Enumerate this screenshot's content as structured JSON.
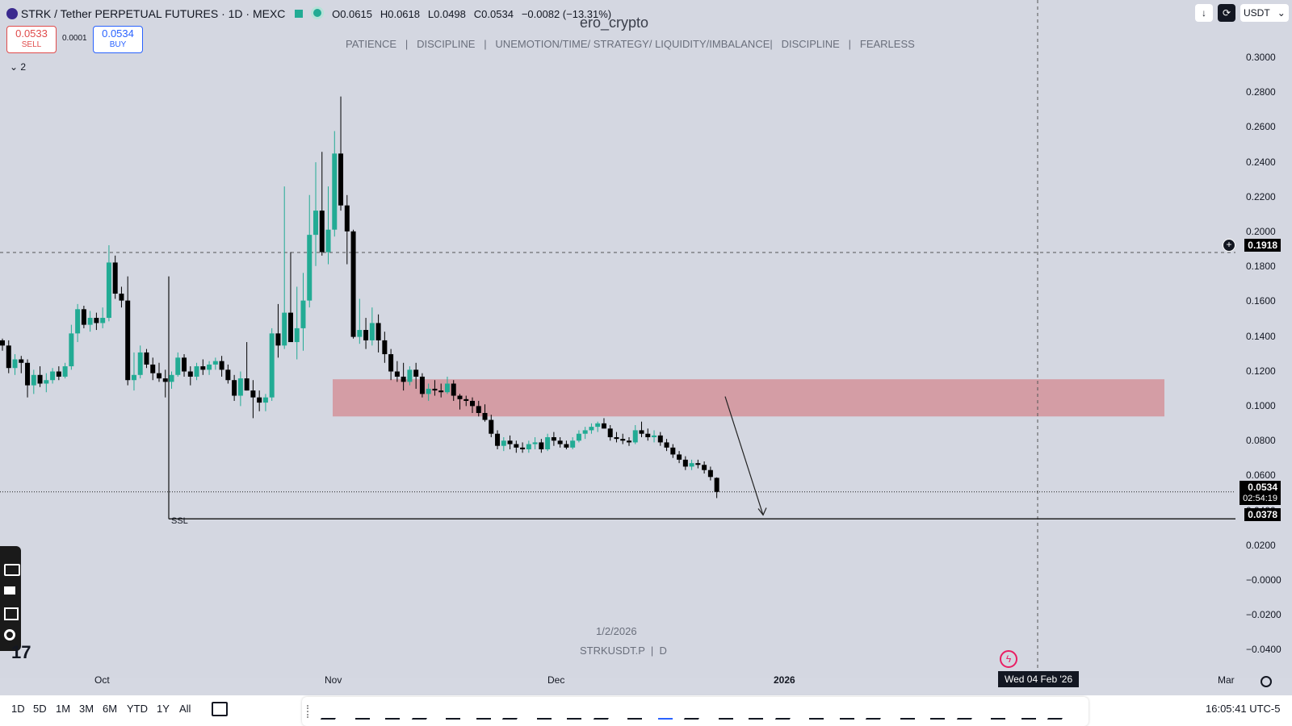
{
  "header": {
    "symbol_title": "STRK / Tether PERPETUAL FUTURES · 1D · MEXC",
    "ohlc": {
      "open": "O0.0615",
      "high": "H0.0618",
      "low": "L0.0498",
      "close": "C0.0534",
      "change": "−0.0082 (−13.31%)"
    },
    "watermark_name": "ero_crypto",
    "motto": "PATIENCE   |   DISCIPLINE   |   UNEMOTION/TIME/ STRATEGY/ LIQUIDITY/IMBALANCE|   DISCIPLINE   |   FEARLESS"
  },
  "trade": {
    "sell_price": "0.0533",
    "sell_label": "SELL",
    "spread": "0.0001",
    "buy_price": "0.0534",
    "buy_label": "BUY"
  },
  "indicators_toggle": "2",
  "top_right": {
    "currency": "USDT"
  },
  "price_axis": {
    "ticks": [
      "0.3000",
      "0.2800",
      "0.2600",
      "0.2400",
      "0.2200",
      "0.2000",
      "0.1800",
      "0.1600",
      "0.1400",
      "0.1200",
      "0.1000",
      "0.0800",
      "0.0600",
      "0.0400",
      "0.0200",
      "−0.0000",
      "−0.0200",
      "−0.0400"
    ],
    "crosshair_price": "0.1918",
    "last_price": "0.0534",
    "countdown": "02:54:19",
    "ssl_price": "0.0378"
  },
  "time_axis": {
    "labels": [
      "Oct",
      "Nov",
      "Dec",
      "2026",
      "Mar"
    ],
    "crosshair_date": "Wed 04 Feb '26"
  },
  "annotations": {
    "ssl_label": "SSL",
    "watermark_date": "1/2/2026",
    "watermark_symbol": "STRKUSDT.P  |  D"
  },
  "ranges": [
    "1D",
    "5D",
    "1M",
    "3M",
    "6M",
    "YTD",
    "1Y",
    "All"
  ],
  "clock": "16:05:41 UTC-5",
  "colors": {
    "up": "#22ab94",
    "down": "#000000",
    "zone": "#d4979e",
    "bg": "#d4d7e1"
  },
  "candles": [
    [
      0.141,
      0.142,
      0.135,
      0.138
    ],
    [
      0.138,
      0.141,
      0.122,
      0.125
    ],
    [
      0.125,
      0.133,
      0.121,
      0.13
    ],
    [
      0.13,
      0.132,
      0.122,
      0.128
    ],
    [
      0.128,
      0.13,
      0.108,
      0.115
    ],
    [
      0.115,
      0.124,
      0.11,
      0.121
    ],
    [
      0.121,
      0.126,
      0.114,
      0.116
    ],
    [
      0.116,
      0.122,
      0.111,
      0.118
    ],
    [
      0.118,
      0.125,
      0.116,
      0.123
    ],
    [
      0.123,
      0.126,
      0.118,
      0.12
    ],
    [
      0.12,
      0.128,
      0.119,
      0.126
    ],
    [
      0.126,
      0.15,
      0.124,
      0.145
    ],
    [
      0.145,
      0.162,
      0.14,
      0.159
    ],
    [
      0.159,
      0.161,
      0.148,
      0.15
    ],
    [
      0.15,
      0.158,
      0.146,
      0.154
    ],
    [
      0.154,
      0.157,
      0.147,
      0.151
    ],
    [
      0.151,
      0.16,
      0.148,
      0.154
    ],
    [
      0.154,
      0.196,
      0.152,
      0.186
    ],
    [
      0.186,
      0.19,
      0.165,
      0.168
    ],
    [
      0.168,
      0.172,
      0.16,
      0.164
    ],
    [
      0.164,
      0.178,
      0.115,
      0.118
    ],
    [
      0.118,
      0.134,
      0.112,
      0.121
    ],
    [
      0.121,
      0.138,
      0.119,
      0.134
    ],
    [
      0.134,
      0.136,
      0.125,
      0.127
    ],
    [
      0.127,
      0.131,
      0.118,
      0.122
    ],
    [
      0.122,
      0.128,
      0.117,
      0.119
    ],
    [
      0.119,
      0.124,
      0.108,
      0.117
    ],
    [
      0.117,
      0.123,
      0.113,
      0.121
    ],
    [
      0.121,
      0.134,
      0.12,
      0.131
    ],
    [
      0.131,
      0.133,
      0.12,
      0.123
    ],
    [
      0.123,
      0.126,
      0.115,
      0.12
    ],
    [
      0.12,
      0.128,
      0.118,
      0.126
    ],
    [
      0.126,
      0.13,
      0.121,
      0.124
    ],
    [
      0.124,
      0.129,
      0.121,
      0.127
    ],
    [
      0.127,
      0.131,
      0.124,
      0.129
    ],
    [
      0.129,
      0.132,
      0.12,
      0.124
    ],
    [
      0.124,
      0.127,
      0.116,
      0.118
    ],
    [
      0.118,
      0.121,
      0.106,
      0.109
    ],
    [
      0.109,
      0.123,
      0.103,
      0.119
    ],
    [
      0.119,
      0.14,
      0.112,
      0.112
    ],
    [
      0.112,
      0.118,
      0.096,
      0.108
    ],
    [
      0.108,
      0.112,
      0.1,
      0.105
    ],
    [
      0.105,
      0.11,
      0.1,
      0.108
    ],
    [
      0.108,
      0.148,
      0.106,
      0.145
    ],
    [
      0.145,
      0.162,
      0.131,
      0.138
    ],
    [
      0.138,
      0.23,
      0.136,
      0.157
    ],
    [
      0.157,
      0.192,
      0.142,
      0.14
    ],
    [
      0.14,
      0.172,
      0.13,
      0.148
    ],
    [
      0.148,
      0.18,
      0.135,
      0.164
    ],
    [
      0.164,
      0.225,
      0.16,
      0.202
    ],
    [
      0.202,
      0.244,
      0.184,
      0.216
    ],
    [
      0.216,
      0.25,
      0.19,
      0.192
    ],
    [
      0.192,
      0.23,
      0.185,
      0.205
    ],
    [
      0.205,
      0.262,
      0.201,
      0.249
    ],
    [
      0.249,
      0.282,
      0.216,
      0.219
    ],
    [
      0.219,
      0.225,
      0.185,
      0.204
    ],
    [
      0.204,
      0.205,
      0.142,
      0.143
    ],
    [
      0.143,
      0.165,
      0.139,
      0.147
    ],
    [
      0.147,
      0.154,
      0.136,
      0.141
    ],
    [
      0.141,
      0.16,
      0.138,
      0.151
    ],
    [
      0.151,
      0.156,
      0.134,
      0.141
    ],
    [
      0.141,
      0.146,
      0.128,
      0.133
    ],
    [
      0.133,
      0.136,
      0.118,
      0.123
    ],
    [
      0.123,
      0.129,
      0.117,
      0.12
    ],
    [
      0.12,
      0.128,
      0.112,
      0.117
    ],
    [
      0.117,
      0.126,
      0.115,
      0.124
    ],
    [
      0.124,
      0.128,
      0.113,
      0.12
    ],
    [
      0.12,
      0.122,
      0.108,
      0.11
    ],
    [
      0.11,
      0.116,
      0.106,
      0.113
    ],
    [
      0.113,
      0.118,
      0.109,
      0.112
    ],
    [
      0.112,
      0.116,
      0.108,
      0.111
    ],
    [
      0.111,
      0.12,
      0.11,
      0.116
    ],
    [
      0.116,
      0.118,
      0.106,
      0.109
    ],
    [
      0.109,
      0.11,
      0.101,
      0.107
    ],
    [
      0.107,
      0.109,
      0.103,
      0.106
    ],
    [
      0.106,
      0.108,
      0.099,
      0.103
    ],
    [
      0.103,
      0.106,
      0.097,
      0.099
    ],
    [
      0.099,
      0.104,
      0.094,
      0.095
    ],
    [
      0.095,
      0.098,
      0.085,
      0.087
    ],
    [
      0.087,
      0.089,
      0.078,
      0.08
    ],
    [
      0.08,
      0.085,
      0.077,
      0.083
    ],
    [
      0.083,
      0.086,
      0.078,
      0.081
    ],
    [
      0.081,
      0.083,
      0.076,
      0.079
    ],
    [
      0.079,
      0.082,
      0.076,
      0.078
    ],
    [
      0.078,
      0.083,
      0.076,
      0.081
    ],
    [
      0.081,
      0.085,
      0.078,
      0.082
    ],
    [
      0.082,
      0.084,
      0.076,
      0.078
    ],
    [
      0.078,
      0.087,
      0.077,
      0.085
    ],
    [
      0.085,
      0.088,
      0.08,
      0.083
    ],
    [
      0.083,
      0.085,
      0.079,
      0.081
    ],
    [
      0.081,
      0.083,
      0.078,
      0.079
    ],
    [
      0.079,
      0.085,
      0.078,
      0.083
    ],
    [
      0.083,
      0.089,
      0.082,
      0.087
    ],
    [
      0.087,
      0.091,
      0.084,
      0.089
    ],
    [
      0.089,
      0.093,
      0.087,
      0.091
    ],
    [
      0.091,
      0.094,
      0.088,
      0.093
    ],
    [
      0.093,
      0.096,
      0.09,
      0.09
    ],
    [
      0.09,
      0.092,
      0.083,
      0.085
    ],
    [
      0.085,
      0.088,
      0.082,
      0.084
    ],
    [
      0.084,
      0.087,
      0.081,
      0.083
    ],
    [
      0.083,
      0.085,
      0.08,
      0.082
    ],
    [
      0.082,
      0.092,
      0.081,
      0.089
    ],
    [
      0.089,
      0.094,
      0.085,
      0.087
    ],
    [
      0.087,
      0.09,
      0.083,
      0.085
    ],
    [
      0.085,
      0.089,
      0.082,
      0.086
    ],
    [
      0.086,
      0.088,
      0.08,
      0.082
    ],
    [
      0.082,
      0.084,
      0.077,
      0.079
    ],
    [
      0.079,
      0.081,
      0.073,
      0.075
    ],
    [
      0.075,
      0.077,
      0.07,
      0.072
    ],
    [
      0.072,
      0.074,
      0.066,
      0.068
    ],
    [
      0.068,
      0.072,
      0.066,
      0.07
    ],
    [
      0.07,
      0.072,
      0.067,
      0.069
    ],
    [
      0.069,
      0.071,
      0.064,
      0.066
    ],
    [
      0.066,
      0.068,
      0.06,
      0.062
    ],
    [
      0.0615,
      0.0618,
      0.0498,
      0.0534
    ]
  ]
}
